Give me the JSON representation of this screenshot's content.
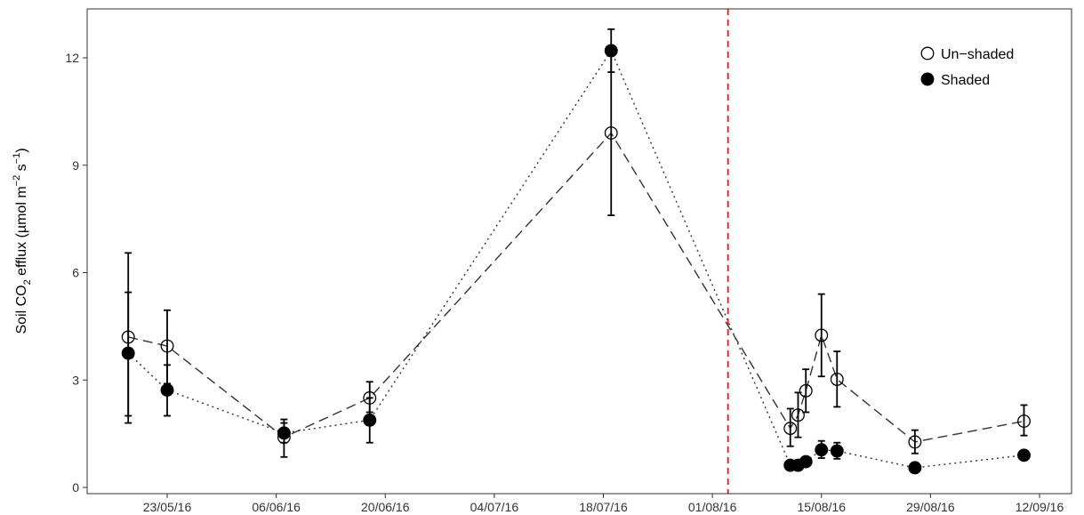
{
  "chart_data": {
    "type": "scatter",
    "title": "",
    "xlabel": "",
    "ylabel_parts": [
      "Soil CO",
      "2",
      " efflux  (µmol m",
      "−2",
      " s",
      "−1",
      ")"
    ],
    "x_ticks": [
      "23/05/16",
      "06/06/16",
      "20/06/16",
      "04/07/16",
      "18/07/16",
      "01/08/16",
      "15/08/16",
      "29/08/16",
      "12/09/16"
    ],
    "y_ticks": [
      "0",
      "3",
      "6",
      "9",
      "12"
    ],
    "ylim": [
      0,
      13.2
    ],
    "grid": false,
    "legend_position": "top-right",
    "reference_line": {
      "date": "03/08/16",
      "color": "#e41a1c",
      "style": "dashed"
    },
    "series": [
      {
        "name": "Un−shaded",
        "marker": "open-circle",
        "line_style": "dashed",
        "points": [
          {
            "date": "18/05/16",
            "y": 4.2,
            "ymin": 1.8,
            "ymax": 6.55
          },
          {
            "date": "23/05/16",
            "y": 3.95,
            "ymin": 2.9,
            "ymax": 4.95
          },
          {
            "date": "07/06/16",
            "y": 1.4,
            "ymin": 0.85,
            "ymax": 1.9
          },
          {
            "date": "18/06/16",
            "y": 2.5,
            "ymin": 2.1,
            "ymax": 2.95
          },
          {
            "date": "19/07/16",
            "y": 9.9,
            "ymin": 7.6,
            "ymax": 12.2
          },
          {
            "date": "11/08/16",
            "y": 1.65,
            "ymin": 1.15,
            "ymax": 2.2
          },
          {
            "date": "12/08/16",
            "y": 2.02,
            "ymin": 1.4,
            "ymax": 2.65
          },
          {
            "date": "13/08/16",
            "y": 2.7,
            "ymin": 2.1,
            "ymax": 3.3
          },
          {
            "date": "15/08/16",
            "y": 4.25,
            "ymin": 3.1,
            "ymax": 5.4
          },
          {
            "date": "17/08/16",
            "y": 3.02,
            "ymin": 2.25,
            "ymax": 3.8
          },
          {
            "date": "27/08/16",
            "y": 1.27,
            "ymin": 0.95,
            "ymax": 1.6
          },
          {
            "date": "10/09/16",
            "y": 1.85,
            "ymin": 1.45,
            "ymax": 2.3
          }
        ]
      },
      {
        "name": "Shaded",
        "marker": "filled-circle",
        "line_style": "dotted",
        "points": [
          {
            "date": "18/05/16",
            "y": 3.75,
            "ymin": 2.0,
            "ymax": 5.45
          },
          {
            "date": "23/05/16",
            "y": 2.72,
            "ymin": 2.0,
            "ymax": 3.42
          },
          {
            "date": "07/06/16",
            "y": 1.52,
            "ymin": 1.25,
            "ymax": 1.8
          },
          {
            "date": "18/06/16",
            "y": 1.88,
            "ymin": 1.25,
            "ymax": 2.5
          },
          {
            "date": "19/07/16",
            "y": 12.2,
            "ymin": 11.6,
            "ymax": 12.8
          },
          {
            "date": "11/08/16",
            "y": 0.62,
            "ymin": 0.52,
            "ymax": 0.72
          },
          {
            "date": "12/08/16",
            "y": 0.62,
            "ymin": 0.52,
            "ymax": 0.72
          },
          {
            "date": "13/08/16",
            "y": 0.72,
            "ymin": 0.62,
            "ymax": 0.82
          },
          {
            "date": "15/08/16",
            "y": 1.05,
            "ymin": 0.82,
            "ymax": 1.3
          },
          {
            "date": "17/08/16",
            "y": 1.02,
            "ymin": 0.8,
            "ymax": 1.25
          },
          {
            "date": "27/08/16",
            "y": 0.55,
            "ymin": 0.48,
            "ymax": 0.62
          },
          {
            "date": "10/09/16",
            "y": 0.9,
            "ymin": 0.82,
            "ymax": 0.98
          }
        ]
      }
    ]
  }
}
